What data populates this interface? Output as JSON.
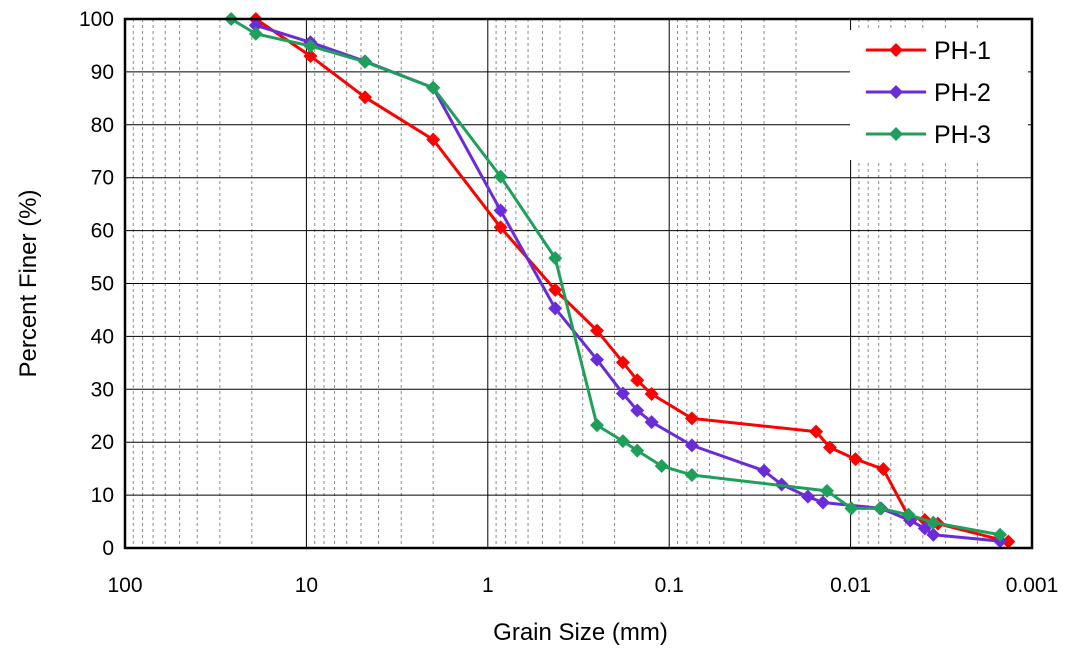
{
  "chart_data": {
    "type": "line",
    "title": "",
    "xlabel": "Grain Size (mm)",
    "ylabel": "Percent Finer (%)",
    "x_scale": "log",
    "x_reversed": true,
    "xlim": [
      100,
      0.001
    ],
    "ylim": [
      0,
      100
    ],
    "x_ticks": [
      100,
      10,
      1,
      0.1,
      0.01,
      0.001
    ],
    "x_tick_labels": [
      "100",
      "10",
      "1",
      "0.1",
      "0.01",
      "0.001"
    ],
    "y_ticks": [
      0,
      10,
      20,
      30,
      40,
      50,
      60,
      70,
      80,
      90,
      100
    ],
    "y_tick_labels": [
      "0",
      "10",
      "20",
      "30",
      "40",
      "50",
      "60",
      "70",
      "80",
      "90",
      "100"
    ],
    "grid": true,
    "legend_position": "top-right",
    "series": [
      {
        "name": "PH-1",
        "color": "#ff0000",
        "marker": "diamond",
        "x": [
          19,
          9.5,
          4.75,
          2,
          0.85,
          0.425,
          0.25,
          0.18,
          0.15,
          0.125,
          0.075,
          0.0155,
          0.013,
          0.0094,
          0.0066,
          0.0048,
          0.0039,
          0.0033,
          0.00135
        ],
        "y": [
          100,
          93,
          85.2,
          77.2,
          60.6,
          48.8,
          41.1,
          35.1,
          31.7,
          29.1,
          24.5,
          22,
          19,
          16.8,
          14.9,
          6,
          5.3,
          4.6,
          1.2
        ]
      },
      {
        "name": "PH-2",
        "color": "#6a2bd9",
        "marker": "diamond",
        "x": [
          19,
          9.5,
          4.75,
          2,
          0.85,
          0.425,
          0.25,
          0.18,
          0.15,
          0.125,
          0.075,
          0.03,
          0.024,
          0.0172,
          0.0142,
          0.0068,
          0.0047,
          0.0039,
          0.0035,
          0.0015
        ],
        "y": [
          98.8,
          95.6,
          92,
          87,
          63.8,
          45.3,
          35.6,
          29.2,
          26,
          23.8,
          19.4,
          14.6,
          12,
          9.7,
          8.6,
          7.5,
          5.2,
          3.7,
          2.5,
          1.3
        ]
      },
      {
        "name": "PH-3",
        "color": "#1ea05a",
        "marker": "diamond",
        "x": [
          26,
          19,
          9.5,
          4.75,
          2,
          0.85,
          0.425,
          0.25,
          0.18,
          0.15,
          0.11,
          0.075,
          0.0135,
          0.0099,
          0.0069,
          0.0048,
          0.0035,
          0.0015
        ],
        "y": [
          100,
          97.2,
          94.9,
          91.9,
          87,
          70.2,
          54.8,
          23.2,
          20.2,
          18.4,
          15.5,
          13.8,
          10.8,
          7.5,
          7.5,
          6.3,
          4.8,
          2.5
        ]
      }
    ]
  }
}
